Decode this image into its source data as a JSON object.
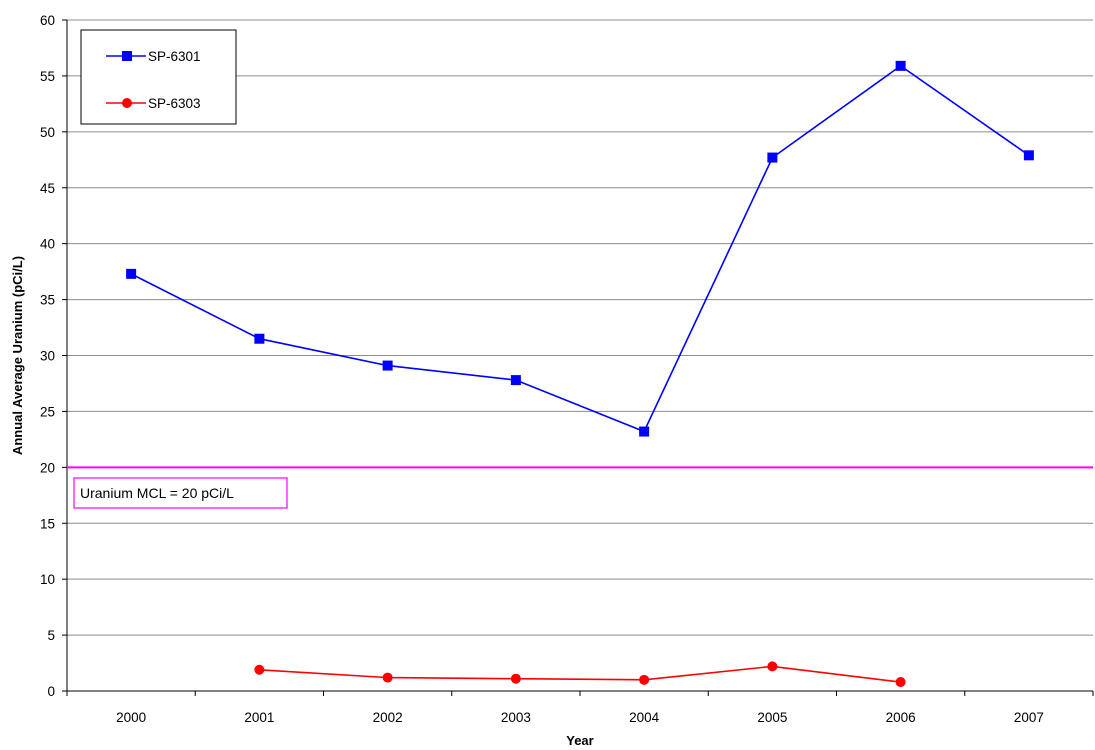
{
  "chart_data": {
    "type": "line",
    "title": "",
    "xlabel": "Year",
    "ylabel": "Annual Average Uranium (pCi/L)",
    "categories": [
      "2000",
      "2001",
      "2002",
      "2003",
      "2004",
      "2005",
      "2006",
      "2007"
    ],
    "ylim": [
      0,
      60
    ],
    "yticks": [
      0,
      5,
      10,
      15,
      20,
      25,
      30,
      35,
      40,
      45,
      50,
      55,
      60
    ],
    "grid": true,
    "legend_position": "top-left",
    "series": [
      {
        "name": "SP-6301",
        "color": "#0000ff",
        "marker": "square",
        "values": [
          37.3,
          31.5,
          29.1,
          27.8,
          23.2,
          47.7,
          55.9,
          47.9
        ]
      },
      {
        "name": "SP-6303",
        "color": "#ff0000",
        "marker": "circle",
        "values": [
          null,
          1.9,
          1.2,
          1.1,
          1.0,
          2.2,
          0.8,
          null
        ]
      }
    ],
    "reference_line": {
      "value": 20,
      "label": "Uranium MCL = 20 pCi/L",
      "color": "#ff00ff"
    }
  }
}
